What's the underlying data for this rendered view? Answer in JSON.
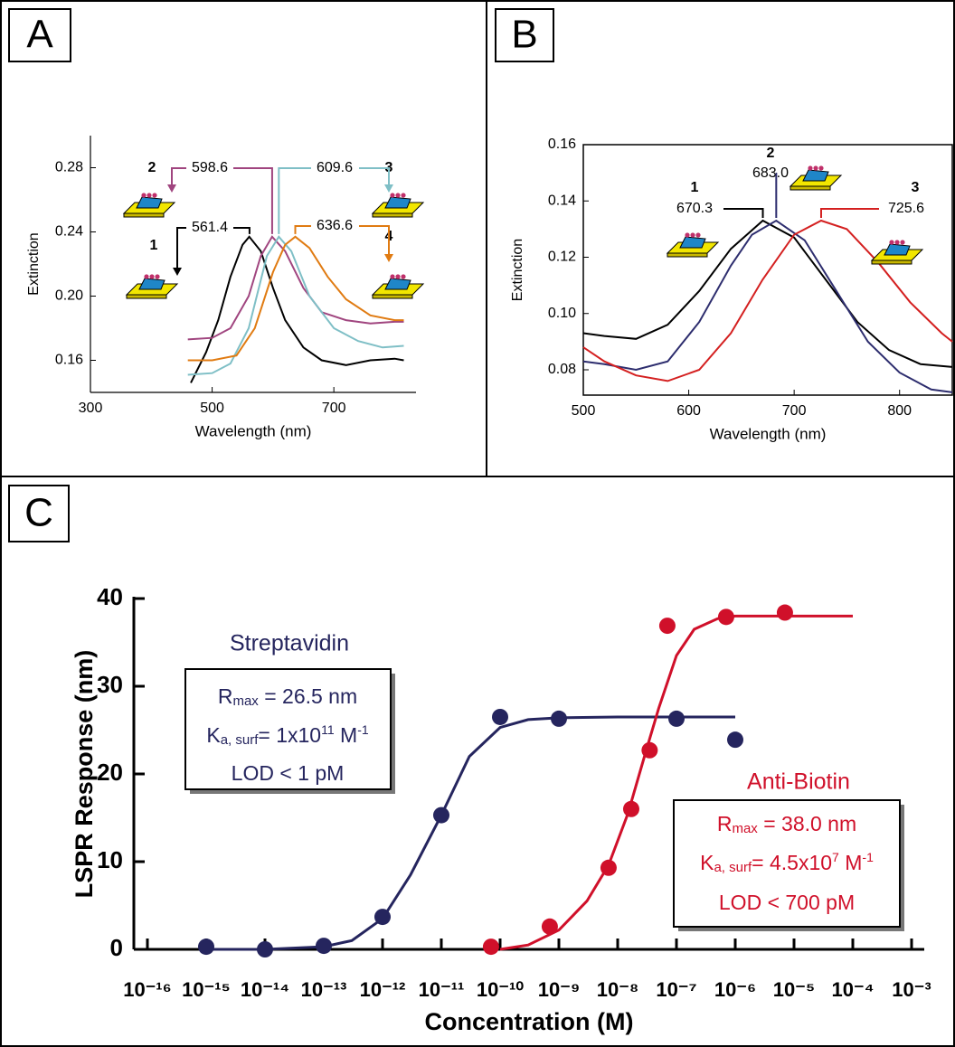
{
  "chart_data": [
    {
      "type": "line",
      "panel": "A",
      "y_label": "Extinction",
      "x_label": "Wavelength (nm)",
      "xlim": [
        300,
        835
      ],
      "xticks": [
        300,
        500,
        700
      ],
      "ylim": [
        0.14,
        0.3
      ],
      "yticks": [
        0.16,
        {
          "value": 0.2,
          "label": "0.20"
        },
        0.24,
        0.28
      ],
      "series": [
        {
          "label": "1",
          "peak_x": 561.4,
          "color": "#000000",
          "x": [
            465,
            490,
            510,
            530,
            550,
            561,
            580,
            600,
            620,
            650,
            680,
            720,
            760,
            800,
            815
          ],
          "values": [
            0.146,
            0.165,
            0.185,
            0.212,
            0.232,
            0.237,
            0.228,
            0.205,
            0.185,
            0.168,
            0.16,
            0.157,
            0.16,
            0.161,
            0.16
          ]
        },
        {
          "label": "2",
          "peak_x": 598.6,
          "color": "#a0457f",
          "x": [
            460,
            500,
            530,
            560,
            580,
            598.6,
            620,
            650,
            680,
            720,
            760,
            800,
            815
          ],
          "values": [
            0.173,
            0.174,
            0.18,
            0.2,
            0.225,
            0.237,
            0.228,
            0.205,
            0.19,
            0.185,
            0.183,
            0.184,
            0.184
          ]
        },
        {
          "label": "3",
          "peak_x": 609.6,
          "color": "#7fbfc6",
          "x": [
            460,
            500,
            530,
            560,
            590,
            609.6,
            630,
            660,
            700,
            740,
            780,
            815
          ],
          "values": [
            0.151,
            0.152,
            0.158,
            0.18,
            0.225,
            0.237,
            0.228,
            0.2,
            0.18,
            0.172,
            0.168,
            0.169
          ]
        },
        {
          "label": "4",
          "peak_x": 636.6,
          "color": "#e07b12",
          "x": [
            460,
            500,
            540,
            570,
            600,
            620,
            636.6,
            660,
            690,
            720,
            760,
            800,
            815
          ],
          "values": [
            0.16,
            0.16,
            0.163,
            0.18,
            0.215,
            0.232,
            0.237,
            0.23,
            0.212,
            0.198,
            0.188,
            0.185,
            0.185
          ]
        }
      ]
    },
    {
      "type": "line",
      "panel": "B",
      "y_label": "Extinction",
      "x_label": "Wavelength (nm)",
      "xlim": [
        500,
        850
      ],
      "xticks": [
        500,
        600,
        700,
        800
      ],
      "ylim": [
        0.071,
        0.16
      ],
      "yticks": [
        0.08,
        {
          "value": 0.1,
          "label": "0.10"
        },
        0.12,
        0.14,
        0.16
      ],
      "series": [
        {
          "label": "1",
          "peak_x": 670.3,
          "color": "#000000",
          "x": [
            500,
            520,
            550,
            580,
            610,
            640,
            670.3,
            700,
            730,
            760,
            790,
            820,
            850
          ],
          "values": [
            0.093,
            0.092,
            0.091,
            0.096,
            0.108,
            0.123,
            0.133,
            0.127,
            0.112,
            0.097,
            0.087,
            0.082,
            0.081
          ]
        },
        {
          "label": "2",
          "peak_x": {
            "value": 683,
            "label": "683.0"
          },
          "color": "#2d2d6e",
          "x": [
            500,
            520,
            550,
            580,
            610,
            640,
            660,
            683,
            710,
            740,
            770,
            800,
            830,
            850
          ],
          "values": [
            0.083,
            0.082,
            0.08,
            0.083,
            0.097,
            0.117,
            0.128,
            0.133,
            0.126,
            0.108,
            0.09,
            0.079,
            0.073,
            0.072
          ]
        },
        {
          "label": "3",
          "peak_x": 725.6,
          "color": "#d42020",
          "x": [
            500,
            520,
            550,
            580,
            610,
            640,
            670,
            700,
            725.6,
            750,
            780,
            810,
            840,
            850
          ],
          "values": [
            0.088,
            0.083,
            0.078,
            0.076,
            0.08,
            0.093,
            0.112,
            0.128,
            0.133,
            0.13,
            0.118,
            0.104,
            0.093,
            0.09
          ]
        }
      ]
    },
    {
      "type": "scatter",
      "panel": "C",
      "y_label": "LSPR Response (nm)",
      "x_label": "Concentration (M)",
      "xscale": "log",
      "xlim": [
        1e-16,
        0.001
      ],
      "xticks": [
        {
          "value": 1e-16,
          "label": "10⁻¹⁶"
        },
        {
          "value": 1e-15,
          "label": "10⁻¹⁵"
        },
        {
          "value": 1e-14,
          "label": "10⁻¹⁴"
        },
        {
          "value": 1e-13,
          "label": "10⁻¹³"
        },
        {
          "value": 1e-12,
          "label": "10⁻¹²"
        },
        {
          "value": 1e-11,
          "label": "10⁻¹¹"
        },
        {
          "value": 1e-10,
          "label": "10⁻¹⁰"
        },
        {
          "value": 1e-09,
          "label": "10⁻⁹"
        },
        {
          "value": 1e-08,
          "label": "10⁻⁸"
        },
        {
          "value": 1e-07,
          "label": "10⁻⁷"
        },
        {
          "value": 1e-06,
          "label": "10⁻⁶"
        },
        {
          "value": 1e-05,
          "label": "10⁻⁵"
        },
        {
          "value": 0.0001,
          "label": "10⁻⁴"
        },
        {
          "value": 0.001,
          "label": "10⁻³"
        }
      ],
      "ylim": [
        0,
        40
      ],
      "yticks": [
        0,
        10,
        20,
        30,
        40
      ],
      "series": [
        {
          "name": "Streptavidin",
          "color": "#25255e",
          "x": [
            1e-15,
            1e-14,
            1e-13,
            1e-12,
            1e-11,
            1e-10,
            1e-09,
            1e-07,
            1e-06
          ],
          "values": [
            0.3,
            0,
            0.4,
            3.7,
            15.3,
            26.5,
            26.3,
            26.3,
            23.9
          ],
          "fit": {
            "x": [
              1e-15,
              1e-14,
              1e-13,
              3e-13,
              1e-12,
              3e-12,
              1e-11,
              3e-11,
              1e-10,
              3e-10,
              1e-09,
              1e-08,
              1e-06
            ],
            "values": [
              0,
              0,
              0.3,
              1,
              3.5,
              8.5,
              15.3,
              22,
              25.3,
              26.2,
              26.4,
              26.5,
              26.5
            ]
          },
          "box": [
            [
              {
                "text": "R"
              },
              {
                "sub": "max"
              },
              {
                "text": " = 26.5 nm"
              }
            ],
            [
              {
                "text": "K"
              },
              {
                "sub": "a, surf"
              },
              {
                "text": "= 1x10"
              },
              {
                "sup": "11"
              },
              {
                "text": " M"
              },
              {
                "sup": "-1"
              }
            ],
            [
              {
                "text": "LOD < 1 pM"
              }
            ]
          ]
        },
        {
          "name": "Anti-Biotin",
          "color": "#d0102a",
          "x": [
            7e-11,
            7e-10,
            7e-09,
            1.7e-08,
            3.5e-08,
            7e-08,
            7e-07,
            7e-06
          ],
          "values": [
            0.3,
            2.6,
            9.3,
            16,
            22.7,
            36.9,
            37.9,
            38.4
          ],
          "fit": {
            "x": [
              1e-10,
              3e-10,
              1e-09,
              3e-09,
              7e-09,
              1.5e-08,
              3e-08,
              5e-08,
              1e-07,
              2e-07,
              5e-07,
              1e-06,
              1e-05,
              0.0001
            ],
            "values": [
              0,
              0.5,
              2.2,
              5.5,
              9.6,
              15.5,
              22.5,
              27.5,
              33.5,
              36.5,
              37.7,
              38,
              38,
              38
            ]
          },
          "box": [
            [
              {
                "text": "R"
              },
              {
                "sub": "max"
              },
              {
                "text": "  = 38.0 nm"
              }
            ],
            [
              {
                "text": "K"
              },
              {
                "sub": "a, surf"
              },
              {
                "text": "= 4.5x10"
              },
              {
                "sup": "7"
              },
              {
                "text": " M"
              },
              {
                "sup": "-1"
              }
            ],
            [
              {
                "text": "LOD < 700 pM"
              }
            ]
          ]
        }
      ]
    }
  ]
}
